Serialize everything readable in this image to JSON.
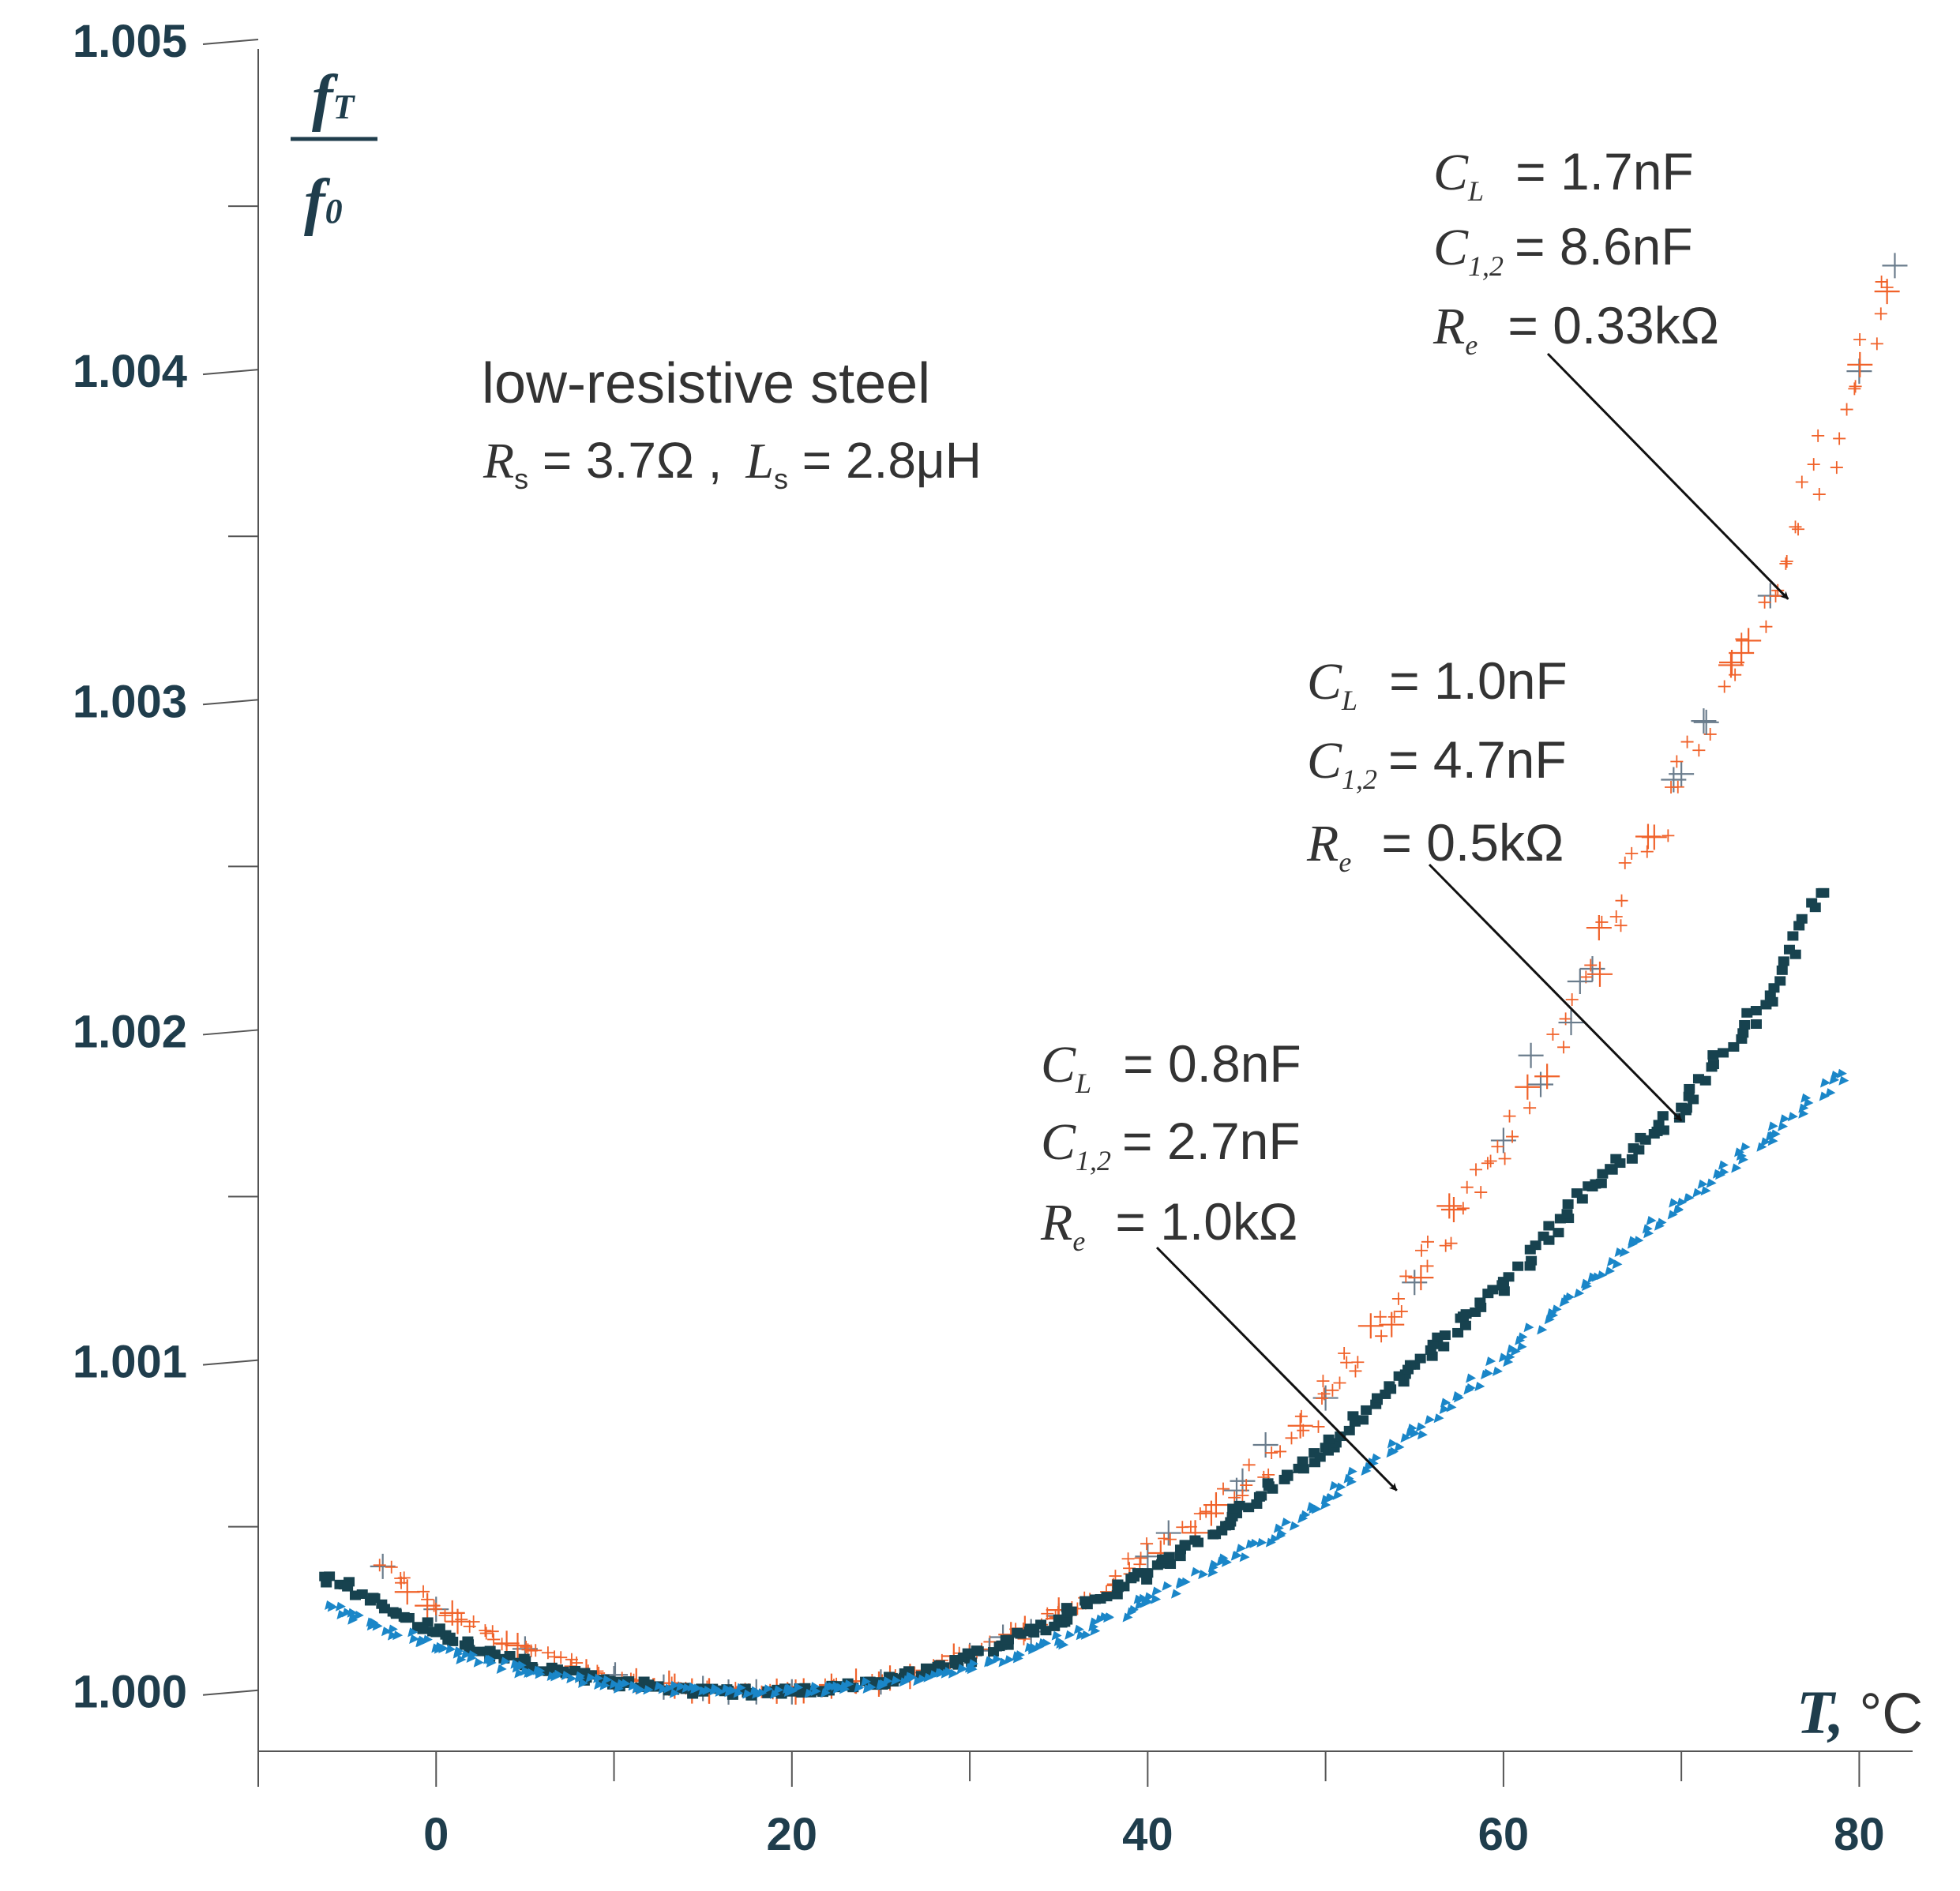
{
  "chart_data": {
    "type": "scatter",
    "title": "",
    "xlabel": {
      "symbol": "T,",
      "unit": "°C"
    },
    "ylabel": {
      "numerator": "f",
      "numerator_sub": "T",
      "denominator": "f",
      "denominator_sub": "0"
    },
    "xlim": [
      -10,
      83
    ],
    "ylim": [
      0.99982,
      1.005
    ],
    "x_ticks": [
      0,
      20,
      40,
      60,
      80
    ],
    "x_tick_labels": [
      "0",
      "20",
      "40",
      "60",
      "80"
    ],
    "y_ticks": [
      1.0,
      1.001,
      1.002,
      1.003,
      1.004,
      1.005
    ],
    "y_tick_labels": [
      "1.000",
      "1.001",
      "1.002",
      "1.003",
      "1.004",
      "1.005"
    ],
    "grid": false,
    "material": {
      "title": "low-resistive steel",
      "rs_symbol": "R",
      "rs_sub": "s",
      "rs_value": " = 3.7Ω ,",
      "ls_symbol": "L",
      "ls_sub": "s",
      "ls_value": " = 2.8μH"
    },
    "series": [
      {
        "name": "C_L = 1.7nF, C_1,2 = 8.6nF, R_e = 0.33kΩ",
        "marker": "plus",
        "color": "#f0622a",
        "alt_color": "#6a7c8c",
        "params": {
          "CL": "= 1.7nF",
          "C12": "= 8.6nF",
          "Re": "= 0.33kΩ"
        },
        "x": [
          -3,
          0,
          5,
          10,
          15,
          18,
          20,
          25,
          30,
          35,
          40,
          45,
          50,
          55,
          60,
          65,
          70,
          75,
          80,
          82
        ],
        "y": [
          1.00038,
          1.00025,
          1.00013,
          1.00004,
          1.00001,
          1.0,
          1.0,
          1.00003,
          1.00011,
          1.00023,
          1.00041,
          1.00061,
          1.00089,
          1.00124,
          1.00167,
          1.00219,
          1.00278,
          1.00332,
          1.004,
          1.00432
        ]
      },
      {
        "name": "C_L = 1.0nF, C_1,2 = 4.7nF, R_e = 0.5kΩ",
        "marker": "square",
        "color": "#17424f",
        "params": {
          "CL": "= 1.0nF",
          "C12": "= 4.7nF",
          "Re": "= 0.5kΩ"
        },
        "x": [
          -6,
          0,
          5,
          10,
          15,
          20,
          25,
          30,
          35,
          40,
          45,
          50,
          55,
          60,
          65,
          70,
          75,
          78
        ],
        "y": [
          1.00035,
          1.00018,
          1.00008,
          1.00003,
          1.0,
          1.0,
          1.00003,
          1.0001,
          1.00022,
          1.00036,
          1.00054,
          1.00074,
          1.00099,
          1.00123,
          1.00153,
          1.00177,
          1.00211,
          1.00242
        ]
      },
      {
        "name": "C_L = 0.8nF, C_1,2 = 2.7nF, R_e = 1.0kΩ",
        "marker": "triangle",
        "color": "#1a86c8",
        "params": {
          "CL": "= 0.8nF",
          "C12": "= 2.7nF",
          "Re": "= 1.0kΩ"
        },
        "x": [
          -6,
          0,
          5,
          10,
          15,
          20,
          25,
          30,
          35,
          40,
          45,
          50,
          55,
          60,
          65,
          70,
          75,
          79
        ],
        "y": [
          1.00026,
          1.00013,
          1.00006,
          1.00002,
          1.0,
          1.0,
          1.00002,
          1.00007,
          1.00015,
          1.00027,
          1.00041,
          1.00058,
          1.00078,
          1.00101,
          1.00125,
          1.00148,
          1.00168,
          1.00187
        ]
      }
    ],
    "annotations": [
      {
        "series": 0,
        "target_x": 76,
        "target_y": 1.00331
      },
      {
        "series": 1,
        "target_x": 70,
        "target_y": 1.00173
      },
      {
        "series": 2,
        "target_x": 54,
        "target_y": 1.00061
      }
    ]
  }
}
